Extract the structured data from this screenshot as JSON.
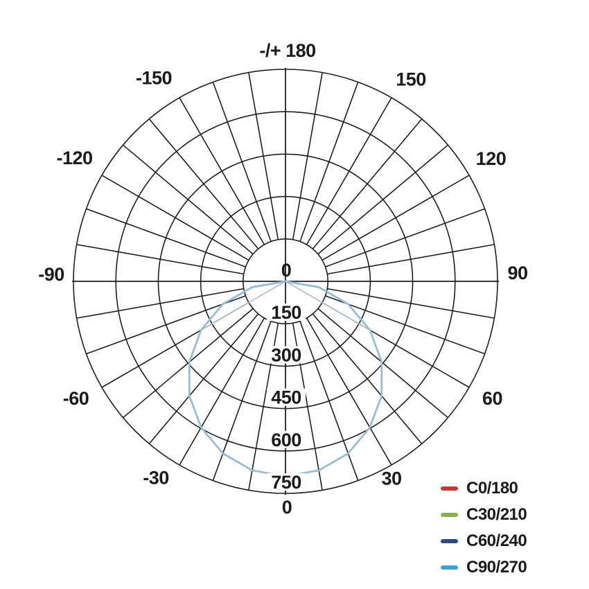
{
  "chart_data": {
    "type": "line",
    "polar": true,
    "description": "Luminous intensity distribution (polar photometric curve)",
    "units": "cd",
    "peak_cd": 690,
    "radial_axis": {
      "ticks": [
        0,
        150,
        300,
        450,
        600,
        750
      ],
      "tick_labels": [
        "0",
        "150",
        "300",
        "450",
        "600",
        "750"
      ],
      "max": 750,
      "labels_along": "downward vertical axis"
    },
    "angle_axis": {
      "label_step_deg": 30,
      "grid_spoke_step_deg": 10,
      "zero_direction": "down",
      "ticks": [
        {
          "angle": 180,
          "text": "-/+ 180"
        },
        {
          "angle": -150,
          "text": "-150"
        },
        {
          "angle": 150,
          "text": "150"
        },
        {
          "angle": -120,
          "text": "-120"
        },
        {
          "angle": 120,
          "text": "120"
        },
        {
          "angle": -90,
          "text": "-90"
        },
        {
          "angle": 90,
          "text": "90"
        },
        {
          "angle": -60,
          "text": "-60"
        },
        {
          "angle": 60,
          "text": "60"
        },
        {
          "angle": -30,
          "text": "-30"
        },
        {
          "angle": 30,
          "text": "30"
        },
        {
          "angle": 0,
          "text": "0"
        }
      ]
    },
    "grid": {
      "rings": [
        150,
        300,
        450,
        600,
        750
      ],
      "spokes_from": 150,
      "spokes_to": 750
    },
    "series": [
      {
        "name": "C0/180",
        "color": "#bf3a3c",
        "angles_deg": [
          -90,
          -80,
          -70,
          -60,
          -50,
          -40,
          -30,
          -20,
          -10,
          0,
          10,
          20,
          30,
          40,
          50,
          60,
          70,
          80,
          90
        ],
        "values": [
          0,
          120,
          236,
          345,
          444,
          529,
          597,
          648,
          679,
          690,
          679,
          648,
          597,
          529,
          444,
          345,
          236,
          120,
          0
        ]
      },
      {
        "name": "C30/210",
        "color": "#8fae51",
        "angles_deg": [
          -90,
          -80,
          -70,
          -60,
          -50,
          -40,
          -30,
          -20,
          -10,
          0,
          10,
          20,
          30,
          40,
          50,
          60,
          70,
          80,
          90
        ],
        "values": [
          0,
          120,
          236,
          345,
          444,
          529,
          597,
          648,
          679,
          690,
          679,
          648,
          597,
          529,
          444,
          345,
          236,
          120,
          0
        ]
      },
      {
        "name": "C60/240",
        "color": "#2e4b78",
        "angles_deg": [
          -90,
          -60,
          -50,
          -40,
          -30,
          -20,
          -10,
          0,
          10,
          20,
          30,
          40,
          50,
          60,
          90
        ],
        "values": [
          0,
          345,
          444,
          529,
          597,
          648,
          679,
          690,
          679,
          648,
          597,
          529,
          444,
          345,
          0
        ]
      },
      {
        "name": "C90/270",
        "color": "#3aa2da",
        "angles_deg": [
          -90,
          -80,
          -70,
          -60,
          -50,
          -40,
          -30,
          -20,
          -10,
          0,
          10,
          20,
          30,
          40,
          50,
          60,
          70,
          80,
          90
        ],
        "values": [
          0,
          120,
          236,
          345,
          444,
          529,
          597,
          648,
          679,
          690,
          679,
          648,
          597,
          529,
          444,
          345,
          236,
          120,
          0
        ]
      }
    ],
    "legend_position": "bottom-right"
  },
  "legend": {
    "items": [
      {
        "label": "C0/180",
        "color": "#bf3a3c"
      },
      {
        "label": "C30/210",
        "color": "#8fae51"
      },
      {
        "label": "C60/240",
        "color": "#2e4b78"
      },
      {
        "label": "C90/270",
        "color": "#3aa2da"
      }
    ]
  }
}
